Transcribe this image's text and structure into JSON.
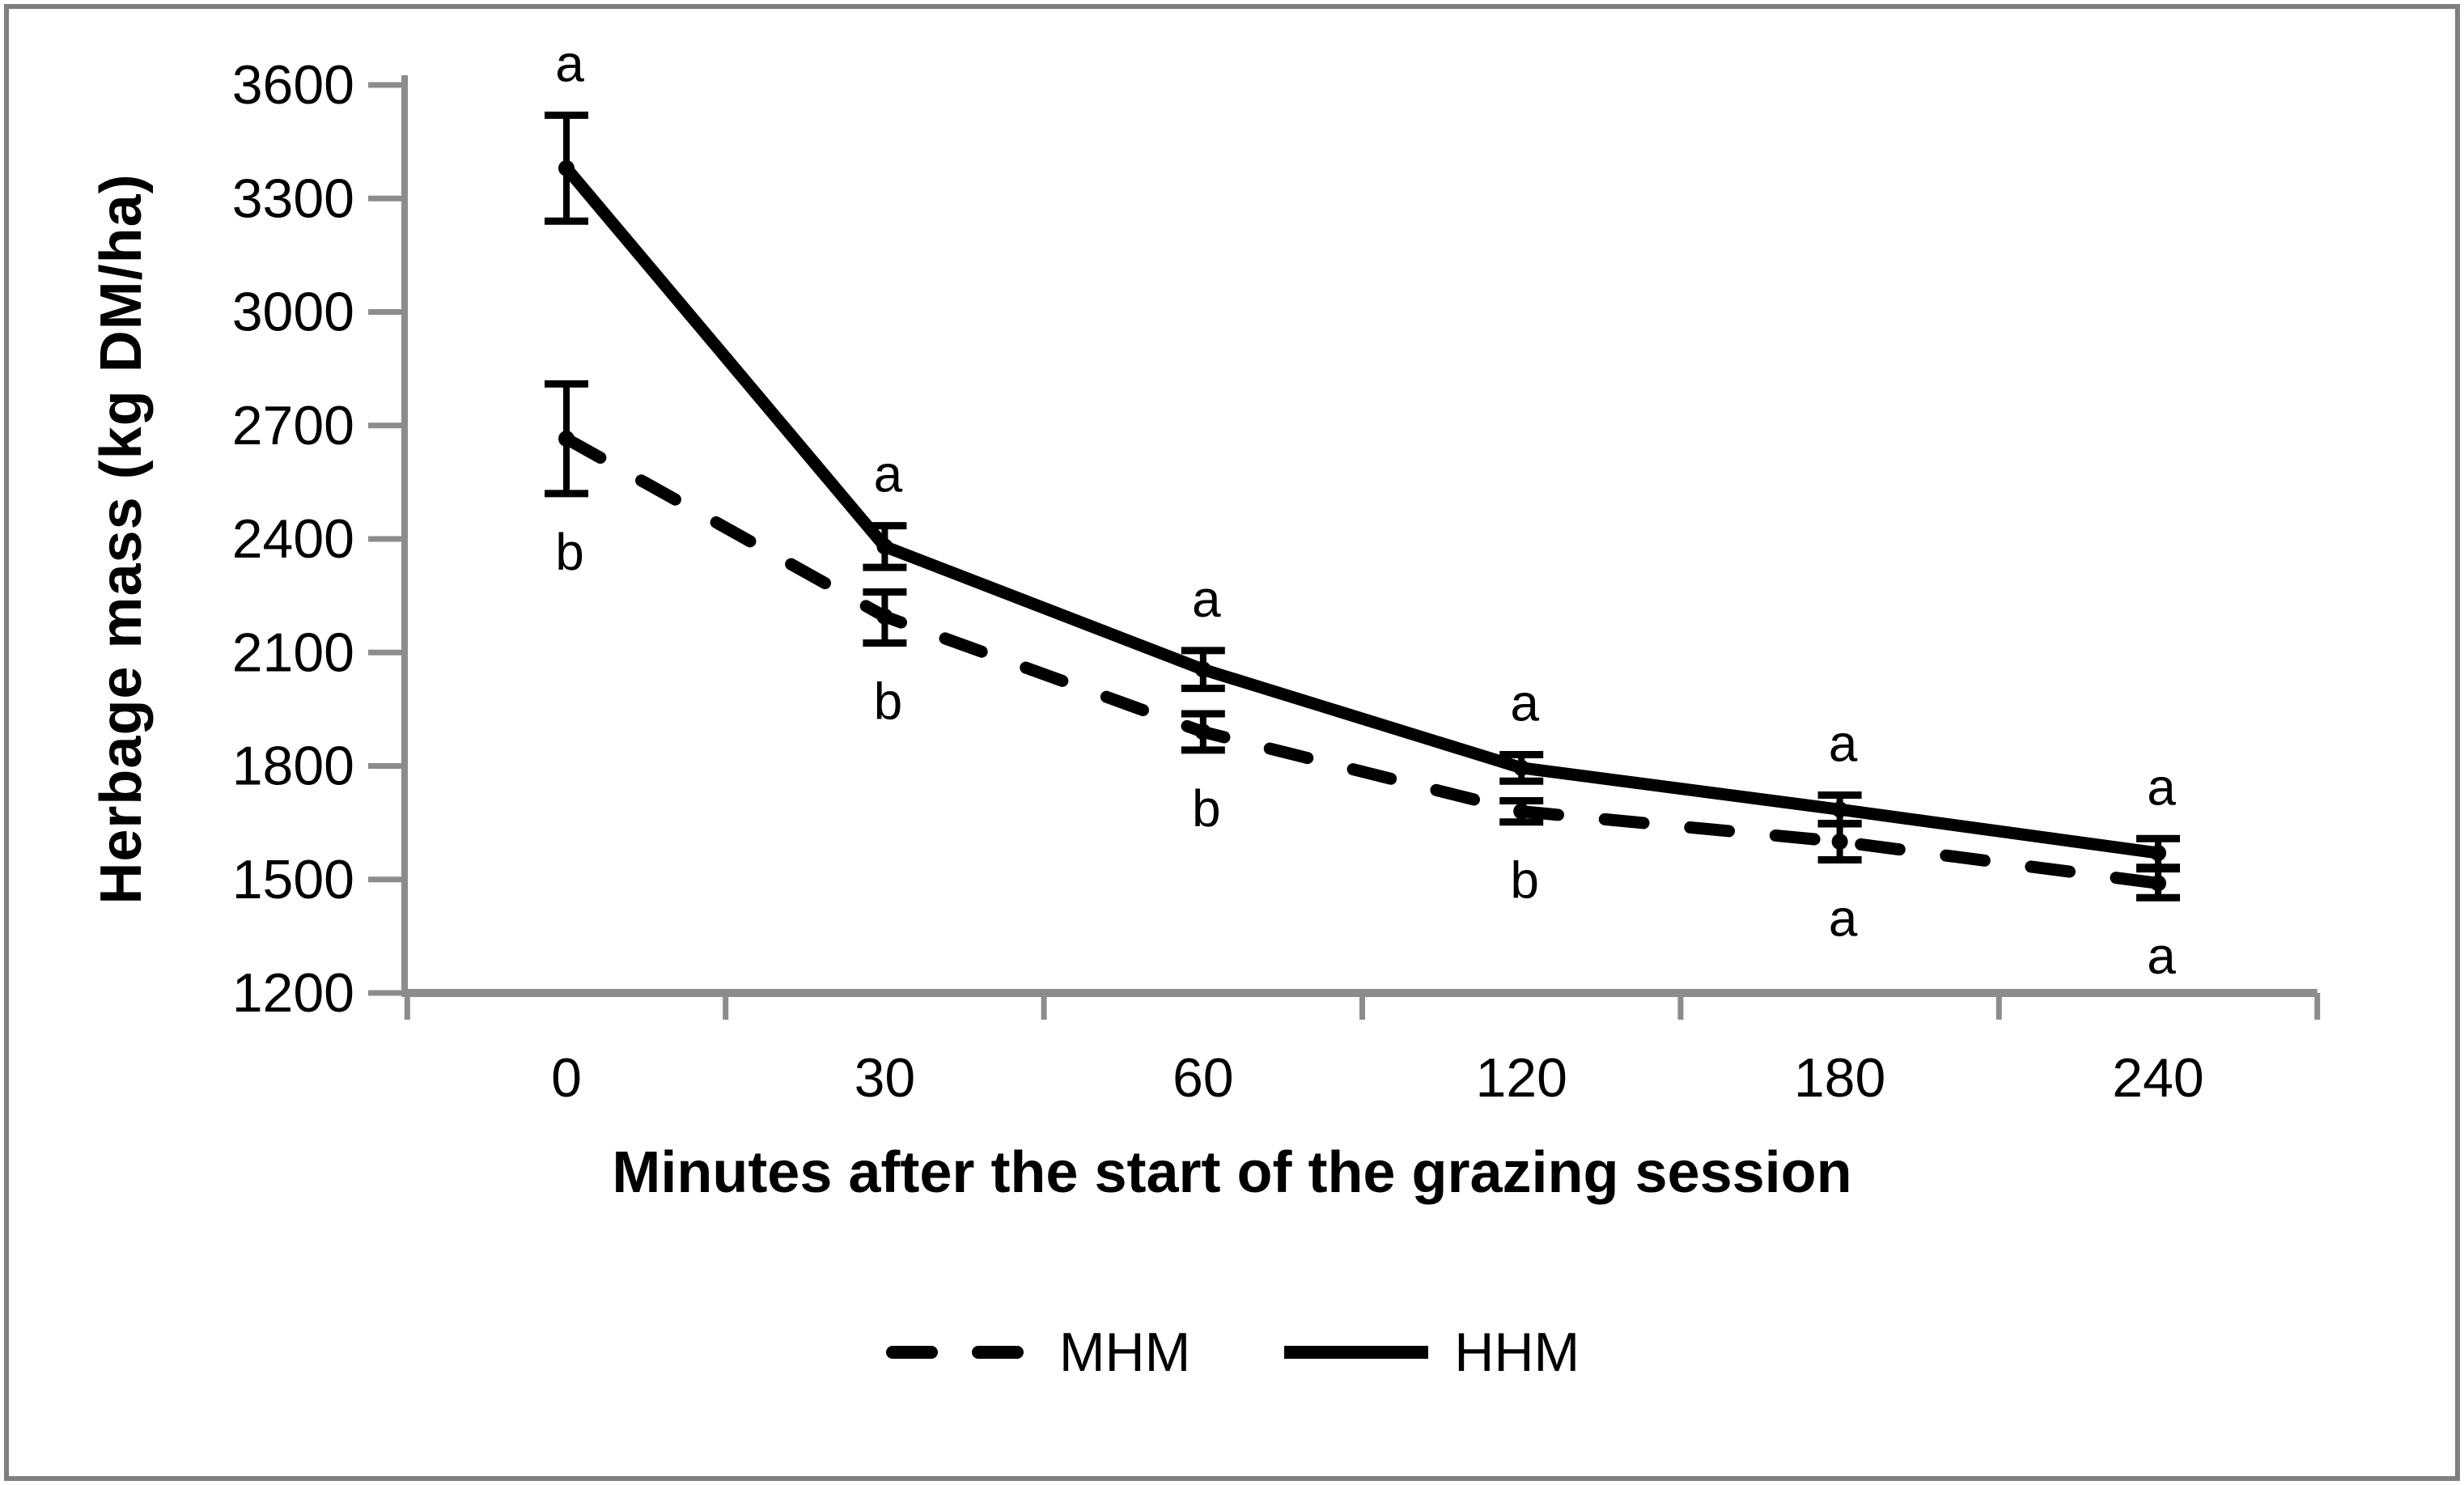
{
  "chart_data": {
    "type": "line",
    "x_categories": [
      "0",
      "30",
      "60",
      "120",
      "180",
      "240"
    ],
    "xlabel": "Minutes after the start of the grazing session",
    "ylabel": "Herbage mass (kg DM/ha)",
    "ylim": [
      1200,
      3600
    ],
    "ytick_step": 300,
    "ytick_labels": [
      "3600",
      "3300",
      "3000",
      "2700",
      "2400",
      "2100",
      "1800",
      "1500",
      "1200"
    ],
    "grid": false,
    "legend_position": "bottom-center",
    "series": [
      {
        "name": "MHM",
        "style": "dashed",
        "values": [
          2665,
          2195,
          1890,
          1680,
          1600,
          1490
        ],
        "error_high": [
          2810,
          2260,
          1938,
          1708,
          1648,
          1528
        ],
        "error_low": [
          2520,
          2125,
          1842,
          1652,
          1552,
          1452
        ],
        "sig_letters": [
          "b",
          "b",
          "b",
          "b",
          "a",
          "a"
        ],
        "letter_position": "below"
      },
      {
        "name": "HHM",
        "style": "solid",
        "values": [
          3380,
          2380,
          2055,
          1795,
          1685,
          1570
        ],
        "error_high": [
          3520,
          2435,
          2105,
          1830,
          1723,
          1608
        ],
        "error_low": [
          3240,
          2325,
          2005,
          1760,
          1647,
          1532
        ],
        "sig_letters": [
          "a",
          "a",
          "a",
          "a",
          "a",
          "a"
        ],
        "letter_position": "above"
      }
    ],
    "colors": {
      "line": "#000000",
      "axis": "#8c8c8c",
      "background": "#ffffff",
      "frame_border": "#7f7f7f"
    }
  },
  "legend": {
    "items": [
      {
        "label": "MHM",
        "style": "dashed"
      },
      {
        "label": "HHM",
        "style": "solid"
      }
    ]
  }
}
